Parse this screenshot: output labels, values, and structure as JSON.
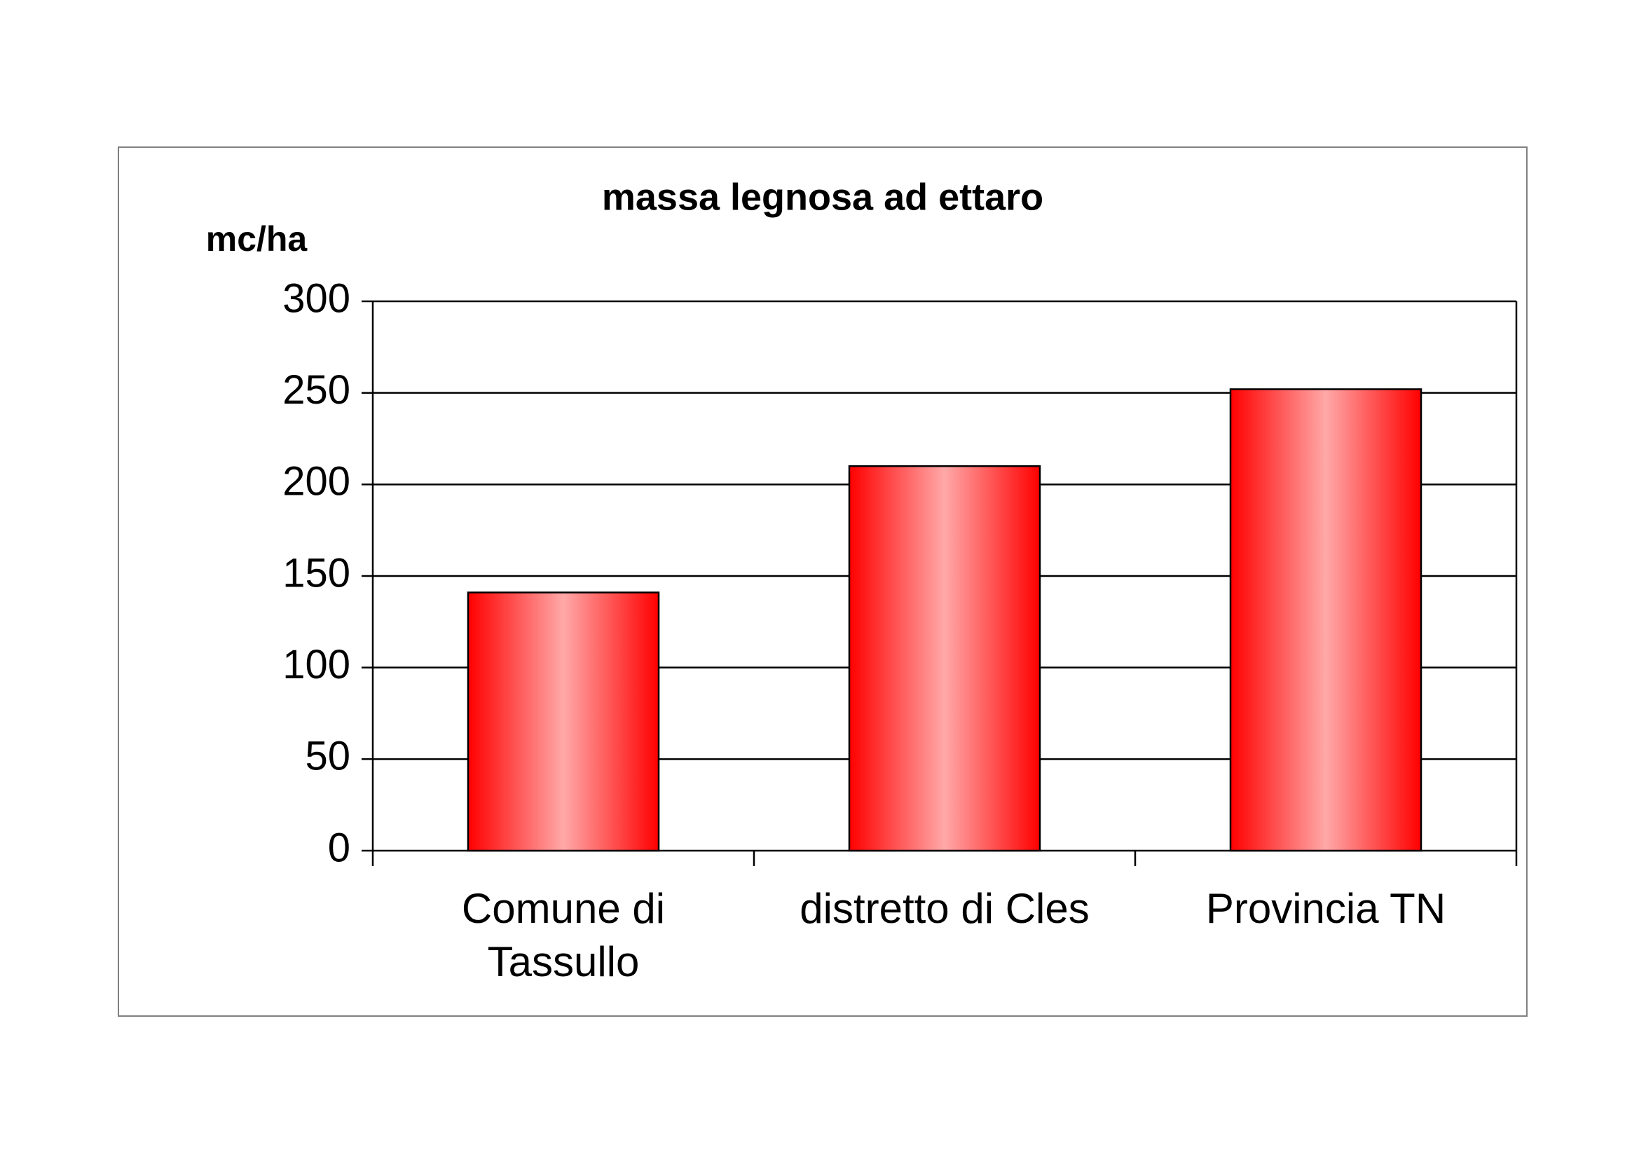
{
  "chart_data": {
    "type": "bar",
    "title": "massa legnosa ad ettaro",
    "y_label": "mc/ha",
    "categories": [
      "Comune di Tassullo",
      "distretto di Cles",
      "Provincia TN"
    ],
    "values": [
      141,
      210,
      252
    ],
    "color": "#ff0000",
    "ylim": [
      0,
      300
    ],
    "yticks": [
      0,
      50,
      100,
      150,
      200,
      250,
      300
    ],
    "grid": true
  }
}
